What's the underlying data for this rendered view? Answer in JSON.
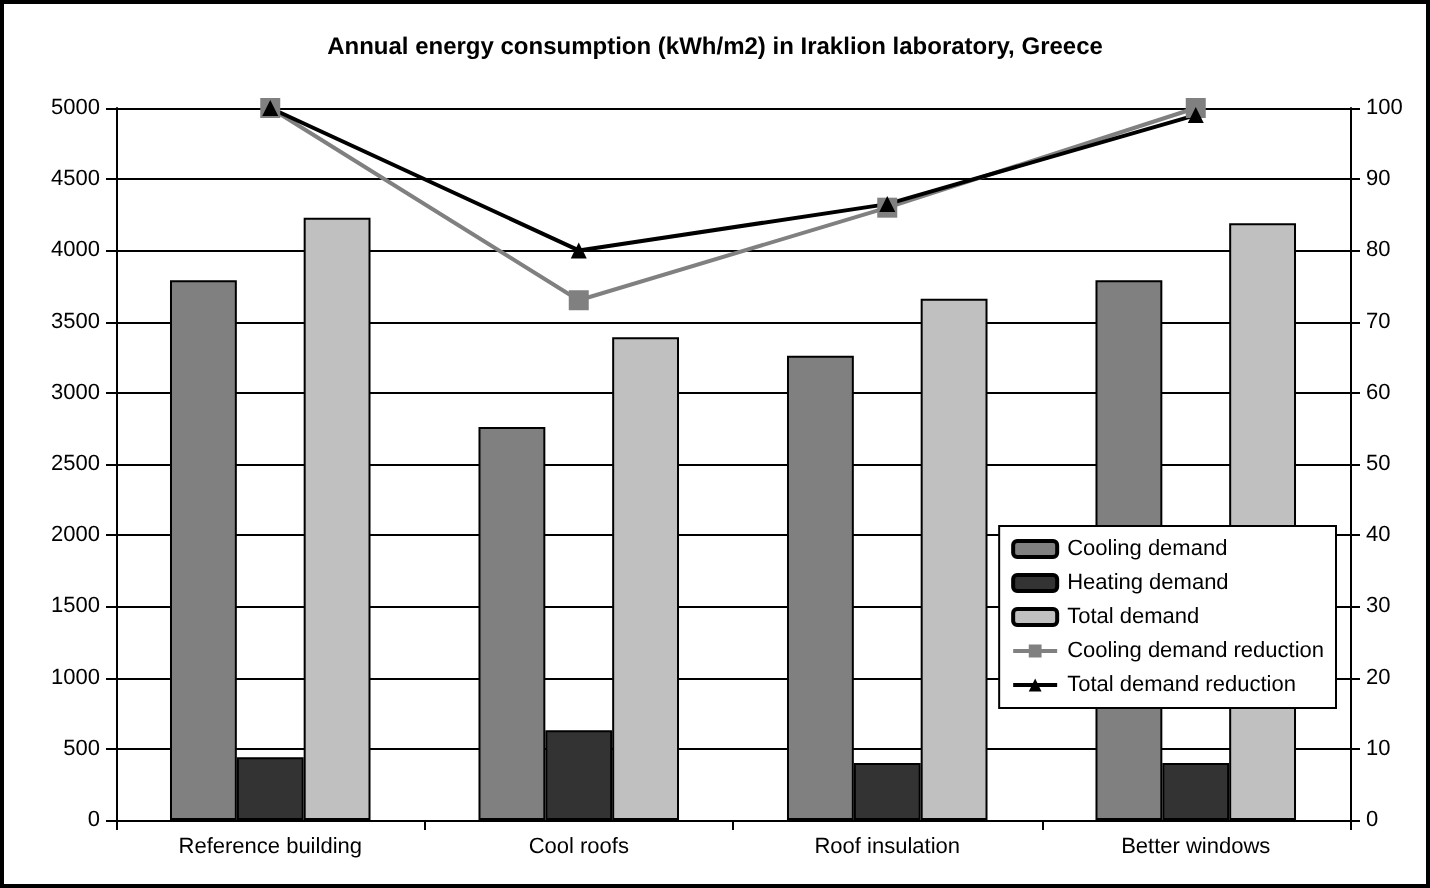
{
  "chart_data": {
    "type": "bar",
    "title": "Annual energy consumption (kWh/m2) in Iraklion laboratory, Greece",
    "categories": [
      "Reference building",
      "Cool roofs",
      "Roof insulation",
      "Better windows"
    ],
    "series": [
      {
        "name": "Cooling demand",
        "color": "#808080",
        "values": [
          3790,
          2760,
          3260,
          3790
        ]
      },
      {
        "name": "Heating demand",
        "color": "#333333",
        "values": [
          440,
          630,
          400,
          400
        ]
      },
      {
        "name": "Total demand",
        "color": "#c0c0c0",
        "values": [
          4230,
          3390,
          3660,
          4190
        ]
      },
      {
        "name": "Cooling demand reduction",
        "type": "line",
        "axis": "y2",
        "marker": "square",
        "color": "#808080",
        "values": [
          100,
          73,
          86,
          100
        ]
      },
      {
        "name": "Total demand reduction",
        "type": "line",
        "axis": "y2",
        "marker": "triangle",
        "color": "#000000",
        "values": [
          100,
          80,
          86.5,
          99
        ]
      }
    ],
    "ylim": [
      0,
      5000
    ],
    "yticks": [
      0,
      500,
      1000,
      1500,
      2000,
      2500,
      3000,
      3500,
      4000,
      4500,
      5000
    ],
    "y2lim": [
      0,
      100
    ],
    "y2ticks": [
      0,
      10,
      20,
      30,
      40,
      50,
      60,
      70,
      80,
      90,
      100
    ],
    "grid": "y",
    "legend": "bottom right"
  }
}
